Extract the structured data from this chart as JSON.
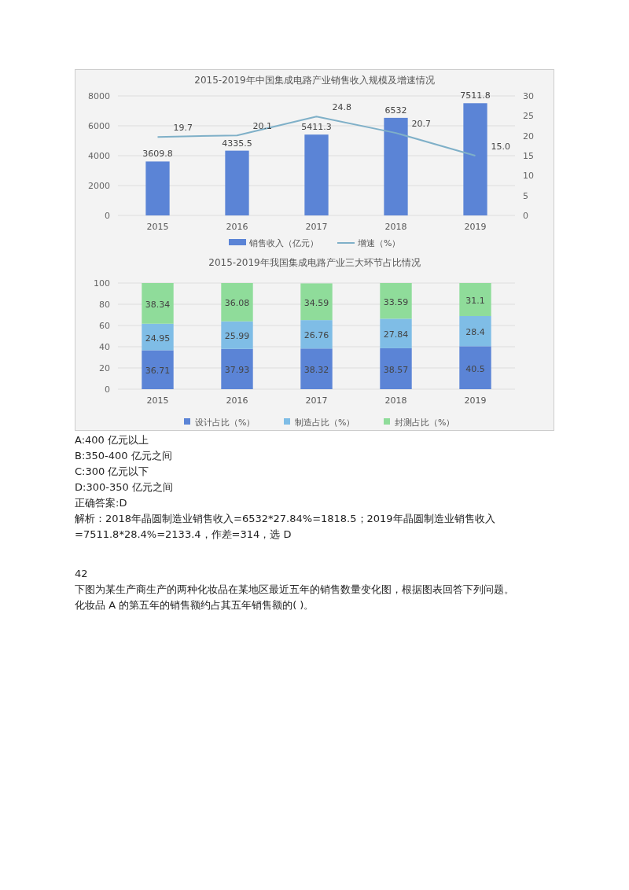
{
  "chart_data": [
    {
      "type": "bar",
      "title": "2015-2019年中国集成电路产业销售收入规模及增速情况",
      "categories": [
        "2015",
        "2016",
        "2017",
        "2018",
        "2019"
      ],
      "series": [
        {
          "name": "销售收入（亿元）",
          "color": "#5b84d6",
          "values": [
            3609.8,
            4335.5,
            5411.3,
            6532,
            7511.8
          ]
        },
        {
          "name": "增速（%）",
          "type": "line",
          "axis": "y2",
          "color": "#7fb0c8",
          "values": [
            19.7,
            20.1,
            24.8,
            20.7,
            15.0
          ],
          "value_labels": [
            "19.7",
            "20.1",
            "24.8",
            "20.7",
            "15.0"
          ]
        }
      ],
      "ylim": [
        0,
        8000
      ],
      "yticks": [
        0,
        2000,
        4000,
        6000,
        8000
      ],
      "y2lim": [
        0,
        30
      ],
      "y2ticks": [
        0,
        5,
        10,
        15,
        20,
        25,
        30
      ],
      "grid": "y",
      "legend": "bottom",
      "data_labels": true,
      "marker": "none",
      "line_style": "solid"
    },
    {
      "type": "bar",
      "stacked": true,
      "title": "2015-2019年我国集成电路产业三大环节占比情况",
      "categories": [
        "2015",
        "2016",
        "2017",
        "2018",
        "2019"
      ],
      "series": [
        {
          "name": "设计占比（%）",
          "color": "#5b84d6",
          "values": [
            36.71,
            37.93,
            38.32,
            38.57,
            40.5
          ]
        },
        {
          "name": "制造占比（%）",
          "color": "#7fbde6",
          "values": [
            24.95,
            25.99,
            26.76,
            27.84,
            28.4
          ]
        },
        {
          "name": "封测占比（%）",
          "color": "#8fdc9a",
          "values": [
            38.34,
            36.08,
            34.59,
            33.59,
            31.1
          ]
        }
      ],
      "ylim": [
        0,
        100
      ],
      "yticks": [
        0,
        20,
        40,
        60,
        80,
        100
      ],
      "grid": "y",
      "legend": "bottom",
      "data_labels": true,
      "annotations": [
        "A:400 亿元以上",
        "B:350-400 亿元之间",
        "C:300 亿元以下",
        "D:300-350 亿元之间",
        "正确答案:D",
        "解析：2018年晶圆制造业销售收入=6532*27.84%=1818.5；2019年晶圆制造业销售收入",
        "=7511.8*28.4%=2133.4，作差=314，选 D",
        "42",
        "下图为某生产商生产的两种化妆品在某地区最近五年的销售数量变化图，根据图表回答下列问题。",
        "化妆品 A 的第五年的销售额约占其五年销售额的( )。"
      ]
    }
  ]
}
